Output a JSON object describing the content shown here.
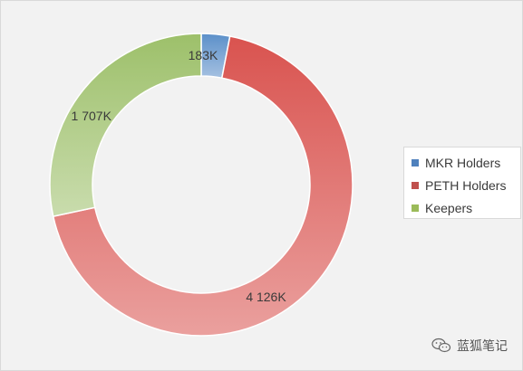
{
  "chart_data": {
    "type": "pie",
    "variant": "donut",
    "start_angle_deg": 0,
    "direction": "clockwise",
    "categories": [
      "MKR Holders",
      "PETH Holders",
      "Keepers"
    ],
    "values": [
      183,
      4126,
      1707
    ],
    "data_labels": [
      "183K",
      "4 126K",
      "1 707K"
    ],
    "colors": [
      "#5b8fc9",
      "#d9534f",
      "#9dc06a"
    ],
    "legend_position": "right",
    "title": ""
  },
  "legend": {
    "items": [
      {
        "label": "MKR Holders",
        "color": "#4f81bd"
      },
      {
        "label": "PETH Holders",
        "color": "#c0504d"
      },
      {
        "label": "Keepers",
        "color": "#9bbb59"
      }
    ]
  },
  "watermark": {
    "text": "蓝狐笔记",
    "icon": "chat-bubbles-icon"
  }
}
